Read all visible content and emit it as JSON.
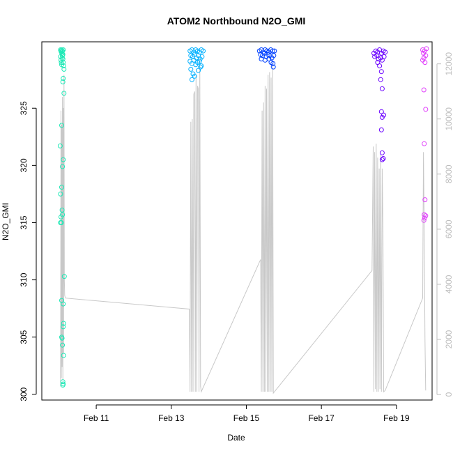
{
  "chart_data": {
    "type": "scatter",
    "title": "ATOM2 Northbound N2O_GMI",
    "xlabel": "Date",
    "ylabel": "N2O_GMI",
    "y2label": "",
    "xlim_days": [
      9.55,
      19.95
    ],
    "ylim": [
      299.5,
      330.8
    ],
    "y2lim": [
      -200,
      12800
    ],
    "x_ticks": [
      {
        "day": 11,
        "label": "Feb 11"
      },
      {
        "day": 13,
        "label": "Feb 13"
      },
      {
        "day": 15,
        "label": "Feb 15"
      },
      {
        "day": 17,
        "label": "Feb 17"
      },
      {
        "day": 19,
        "label": "Feb 19"
      }
    ],
    "y_ticks": [
      300,
      305,
      310,
      315,
      320,
      325
    ],
    "y2_ticks": [
      0,
      2000,
      4000,
      6000,
      8000,
      10000,
      12000
    ],
    "grid": false,
    "legend": "none",
    "colors": {
      "axis": "#000000",
      "secondary_axis": "#bdbdbd",
      "altitude_line": "#c8c8c8",
      "flight1": "#1de9b6",
      "flight2": "#00b0ff",
      "flight3": "#0040ff",
      "flight4": "#6a00ff",
      "flight5": "#e040fb"
    },
    "series": [
      {
        "color_key": "flight1",
        "points": [
          [
            10.05,
            330.1
          ],
          [
            10.06,
            330.0
          ],
          [
            10.07,
            329.9
          ],
          [
            10.08,
            330.1
          ],
          [
            10.09,
            329.8
          ],
          [
            10.1,
            330.0
          ],
          [
            10.11,
            329.7
          ],
          [
            10.12,
            330.1
          ],
          [
            10.05,
            329.5
          ],
          [
            10.06,
            329.2
          ],
          [
            10.07,
            329.0
          ],
          [
            10.08,
            328.8
          ],
          [
            10.09,
            329.4
          ],
          [
            10.1,
            329.6
          ],
          [
            10.11,
            329.3
          ],
          [
            10.12,
            329.0
          ],
          [
            10.13,
            328.7
          ],
          [
            10.14,
            328.4
          ],
          [
            10.12,
            327.6
          ],
          [
            10.11,
            327.3
          ],
          [
            10.14,
            326.3
          ],
          [
            10.08,
            323.5
          ],
          [
            10.04,
            321.7
          ],
          [
            10.12,
            320.5
          ],
          [
            10.1,
            319.9
          ],
          [
            10.08,
            318.1
          ],
          [
            10.05,
            317.5
          ],
          [
            10.09,
            316.1
          ],
          [
            10.1,
            315.7
          ],
          [
            10.06,
            315.5
          ],
          [
            10.07,
            315.0
          ],
          [
            10.05,
            315.0
          ],
          [
            10.15,
            310.3
          ],
          [
            10.08,
            308.2
          ],
          [
            10.12,
            307.9
          ],
          [
            10.13,
            306.2
          ],
          [
            10.12,
            305.9
          ],
          [
            10.08,
            305.0
          ],
          [
            10.09,
            304.9
          ],
          [
            10.1,
            304.3
          ],
          [
            10.13,
            303.4
          ],
          [
            10.11,
            301.1
          ],
          [
            10.12,
            300.9
          ],
          [
            10.11,
            300.8
          ]
        ]
      },
      {
        "color_key": "flight2",
        "points": [
          [
            13.5,
            330.0
          ],
          [
            13.55,
            330.1
          ],
          [
            13.6,
            329.9
          ],
          [
            13.65,
            330.1
          ],
          [
            13.7,
            330.0
          ],
          [
            13.75,
            329.9
          ],
          [
            13.8,
            330.1
          ],
          [
            13.85,
            330.0
          ],
          [
            13.52,
            329.6
          ],
          [
            13.57,
            329.5
          ],
          [
            13.62,
            329.7
          ],
          [
            13.67,
            329.4
          ],
          [
            13.72,
            329.6
          ],
          [
            13.77,
            329.3
          ],
          [
            13.82,
            329.5
          ],
          [
            13.5,
            329.1
          ],
          [
            13.55,
            328.9
          ],
          [
            13.6,
            329.2
          ],
          [
            13.65,
            328.8
          ],
          [
            13.7,
            329.0
          ],
          [
            13.75,
            329.1
          ],
          [
            13.8,
            328.7
          ],
          [
            13.52,
            328.4
          ],
          [
            13.58,
            328.0
          ],
          [
            13.62,
            327.8
          ],
          [
            13.72,
            328.3
          ],
          [
            13.78,
            328.6
          ],
          [
            13.55,
            327.5
          ]
        ]
      },
      {
        "color_key": "flight3",
        "points": [
          [
            15.35,
            330.0
          ],
          [
            15.4,
            330.1
          ],
          [
            15.45,
            329.9
          ],
          [
            15.5,
            330.1
          ],
          [
            15.55,
            330.0
          ],
          [
            15.6,
            329.9
          ],
          [
            15.65,
            330.1
          ],
          [
            15.7,
            330.0
          ],
          [
            15.75,
            330.0
          ],
          [
            15.38,
            329.7
          ],
          [
            15.43,
            329.6
          ],
          [
            15.48,
            329.8
          ],
          [
            15.53,
            329.5
          ],
          [
            15.58,
            329.7
          ],
          [
            15.63,
            329.6
          ],
          [
            15.68,
            329.4
          ],
          [
            15.73,
            329.6
          ],
          [
            15.4,
            329.3
          ],
          [
            15.5,
            329.2
          ],
          [
            15.6,
            329.3
          ],
          [
            15.66,
            329.0
          ],
          [
            15.71,
            328.9
          ],
          [
            15.72,
            328.6
          ]
        ]
      },
      {
        "color_key": "flight4",
        "points": [
          [
            18.4,
            329.8
          ],
          [
            18.45,
            330.0
          ],
          [
            18.5,
            329.9
          ],
          [
            18.55,
            330.1
          ],
          [
            18.6,
            329.8
          ],
          [
            18.65,
            330.0
          ],
          [
            18.7,
            329.9
          ],
          [
            18.42,
            329.5
          ],
          [
            18.48,
            329.6
          ],
          [
            18.52,
            329.3
          ],
          [
            18.58,
            329.4
          ],
          [
            18.62,
            329.2
          ],
          [
            18.67,
            329.5
          ],
          [
            18.5,
            329.0
          ],
          [
            18.55,
            328.7
          ],
          [
            18.6,
            328.2
          ],
          [
            18.58,
            327.5
          ],
          [
            18.62,
            326.7
          ],
          [
            18.6,
            324.7
          ],
          [
            18.62,
            324.2
          ],
          [
            18.66,
            324.4
          ],
          [
            18.6,
            323.1
          ],
          [
            18.62,
            321.1
          ],
          [
            18.62,
            320.5
          ],
          [
            18.65,
            320.6
          ]
        ]
      },
      {
        "color_key": "flight5",
        "points": [
          [
            19.7,
            330.1
          ],
          [
            19.75,
            330.0
          ],
          [
            19.8,
            330.2
          ],
          [
            19.72,
            329.8
          ],
          [
            19.78,
            329.6
          ],
          [
            19.73,
            329.4
          ],
          [
            19.7,
            329.2
          ],
          [
            19.76,
            329.0
          ],
          [
            19.73,
            326.6
          ],
          [
            19.78,
            324.9
          ],
          [
            19.74,
            321.9
          ],
          [
            19.76,
            317.0
          ],
          [
            19.74,
            315.7
          ],
          [
            19.78,
            315.6
          ],
          [
            19.75,
            315.4
          ],
          [
            19.73,
            315.2
          ]
        ]
      }
    ],
    "altitude_line": [
      [
        10.05,
        300
      ],
      [
        10.06,
        10300
      ],
      [
        10.07,
        600
      ],
      [
        10.08,
        9800
      ],
      [
        10.09,
        1000
      ],
      [
        10.1,
        10800
      ],
      [
        10.11,
        500
      ],
      [
        10.12,
        10400
      ],
      [
        10.13,
        1500
      ],
      [
        10.14,
        11600
      ],
      [
        10.15,
        4200
      ],
      [
        10.16,
        3600
      ],
      [
        10.18,
        3500
      ],
      [
        13.48,
        3100
      ],
      [
        13.5,
        100
      ],
      [
        13.52,
        9900
      ],
      [
        13.54,
        100
      ],
      [
        13.56,
        10000
      ],
      [
        13.58,
        100
      ],
      [
        13.6,
        10900
      ],
      [
        13.62,
        11000
      ],
      [
        13.64,
        100
      ],
      [
        13.66,
        11600
      ],
      [
        13.68,
        100
      ],
      [
        13.7,
        11200
      ],
      [
        13.72,
        11100
      ],
      [
        13.74,
        100
      ],
      [
        13.76,
        12200
      ],
      [
        13.78,
        300
      ],
      [
        13.8,
        100
      ],
      [
        15.38,
        4900
      ],
      [
        15.4,
        100
      ],
      [
        15.42,
        10300
      ],
      [
        15.44,
        100
      ],
      [
        15.46,
        10600
      ],
      [
        15.48,
        100
      ],
      [
        15.5,
        11200
      ],
      [
        15.52,
        100
      ],
      [
        15.54,
        11100
      ],
      [
        15.56,
        100
      ],
      [
        15.58,
        11600
      ],
      [
        15.6,
        100
      ],
      [
        15.62,
        11700
      ],
      [
        15.64,
        100
      ],
      [
        15.66,
        11500
      ],
      [
        15.68,
        100
      ],
      [
        15.7,
        12000
      ],
      [
        15.72,
        50
      ],
      [
        18.35,
        4500
      ],
      [
        18.38,
        9000
      ],
      [
        18.4,
        100
      ],
      [
        18.42,
        8800
      ],
      [
        18.44,
        200
      ],
      [
        18.46,
        9100
      ],
      [
        18.48,
        100
      ],
      [
        18.5,
        8600
      ],
      [
        18.52,
        100
      ],
      [
        18.54,
        8200
      ],
      [
        18.56,
        200
      ],
      [
        18.58,
        8700
      ],
      [
        18.6,
        100
      ],
      [
        18.62,
        8200
      ],
      [
        18.64,
        6000
      ],
      [
        18.66,
        100
      ],
      [
        18.7,
        150
      ],
      [
        19.7,
        3500
      ],
      [
        19.72,
        8800
      ],
      [
        19.74,
        6000
      ],
      [
        19.76,
        2000
      ],
      [
        19.78,
        150
      ]
    ]
  }
}
